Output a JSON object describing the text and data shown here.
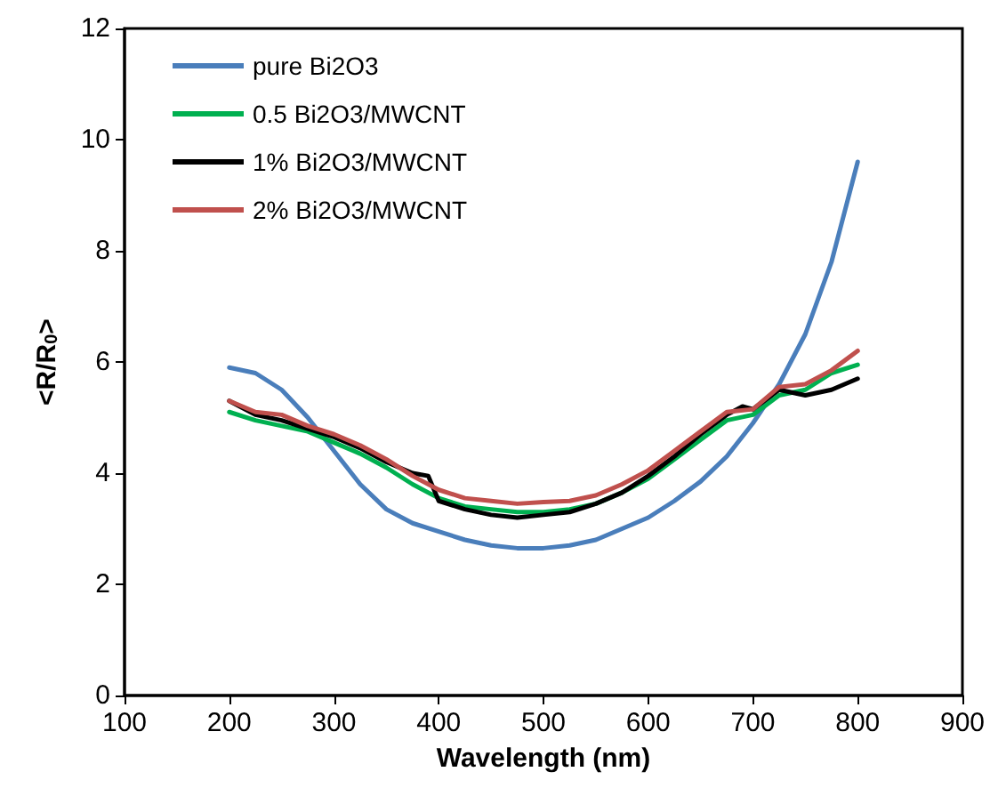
{
  "chart_data": {
    "type": "line",
    "xlabel": "Wavelength (nm)",
    "ylabel": "<R/R$_{0}$>",
    "xlim": [
      100,
      900
    ],
    "xticks": [
      100,
      200,
      300,
      400,
      500,
      600,
      700,
      800,
      900
    ],
    "ylim": [
      0,
      12
    ],
    "yticks": [
      0,
      2,
      4,
      6,
      8,
      10,
      12
    ],
    "grid": false,
    "legend": "top left",
    "marker": "none",
    "line_style": "solid",
    "series": [
      {
        "name": "pure Bi2O3",
        "color": "#4a7ebb",
        "x": [
          200,
          225,
          250,
          275,
          300,
          325,
          350,
          375,
          400,
          425,
          450,
          475,
          500,
          525,
          550,
          575,
          600,
          625,
          650,
          675,
          700,
          725,
          750,
          775,
          800
        ],
        "values": [
          5.9,
          5.8,
          5.5,
          5.0,
          4.4,
          3.8,
          3.35,
          3.1,
          2.95,
          2.8,
          2.7,
          2.65,
          2.65,
          2.7,
          2.8,
          3.0,
          3.2,
          3.5,
          3.85,
          4.3,
          4.9,
          5.6,
          6.5,
          7.8,
          9.6
        ]
      },
      {
        "name": "0.5 Bi2O3/MWCNT",
        "color": "#00b050",
        "x": [
          200,
          225,
          250,
          275,
          300,
          325,
          350,
          375,
          400,
          425,
          450,
          475,
          500,
          525,
          550,
          575,
          600,
          625,
          650,
          675,
          700,
          725,
          750,
          775,
          800
        ],
        "values": [
          5.1,
          4.95,
          4.85,
          4.75,
          4.55,
          4.35,
          4.1,
          3.8,
          3.55,
          3.4,
          3.35,
          3.3,
          3.3,
          3.35,
          3.45,
          3.65,
          3.9,
          4.25,
          4.6,
          4.95,
          5.05,
          5.4,
          5.5,
          5.8,
          5.95
        ]
      },
      {
        "name": "1% Bi2O3/MWCNT",
        "color": "#000000",
        "x": [
          200,
          225,
          250,
          275,
          300,
          325,
          350,
          375,
          390,
          400,
          425,
          450,
          475,
          500,
          525,
          550,
          575,
          600,
          625,
          650,
          675,
          690,
          700,
          725,
          750,
          775,
          800
        ],
        "values": [
          5.3,
          5.05,
          4.95,
          4.8,
          4.65,
          4.45,
          4.2,
          4.0,
          3.95,
          3.5,
          3.35,
          3.25,
          3.2,
          3.25,
          3.3,
          3.45,
          3.65,
          3.95,
          4.3,
          4.7,
          5.05,
          5.2,
          5.15,
          5.5,
          5.4,
          5.5,
          5.7
        ]
      },
      {
        "name": "2% Bi2O3/MWCNT",
        "color": "#c0504d",
        "x": [
          200,
          225,
          250,
          275,
          300,
          325,
          350,
          375,
          400,
          425,
          450,
          475,
          500,
          525,
          550,
          575,
          600,
          625,
          650,
          675,
          700,
          725,
          750,
          775,
          800
        ],
        "values": [
          5.3,
          5.1,
          5.05,
          4.85,
          4.7,
          4.5,
          4.25,
          3.95,
          3.7,
          3.55,
          3.5,
          3.45,
          3.48,
          3.5,
          3.6,
          3.8,
          4.05,
          4.4,
          4.75,
          5.1,
          5.15,
          5.55,
          5.6,
          5.85,
          6.2
        ]
      }
    ]
  }
}
